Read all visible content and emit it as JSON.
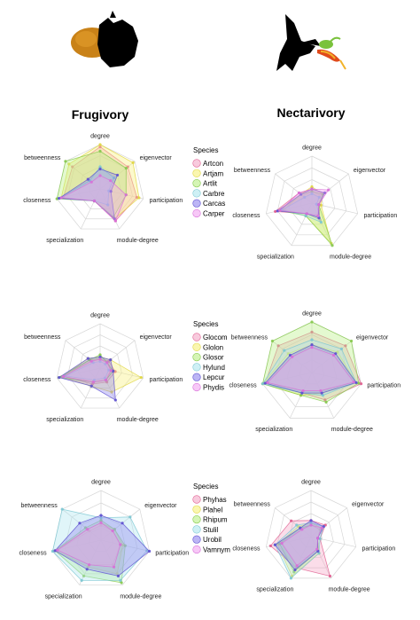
{
  "columns": [
    "Frugivory",
    "Nectarivory"
  ],
  "icons": [
    "fruit-bat-with-fruit-icon",
    "bat-with-flower-icon"
  ],
  "axes": [
    "degree",
    "eigenvector",
    "participation",
    "module-degree",
    "specialization",
    "closeness",
    "betweenness"
  ],
  "colors": [
    "#f4a6c6",
    "#f6f07a",
    "#b9ef83",
    "#aee6ee",
    "#8f83ee",
    "#f2a3f2"
  ],
  "outline_colors": [
    "#e05c8f",
    "#e0d640",
    "#86c94e",
    "#7cc7d2",
    "#5e50d0",
    "#d86fd8"
  ],
  "chart_data": [
    {
      "type": "radar",
      "panel": "frugivory-1",
      "title": "Frugivory",
      "legend_title": "Species",
      "legend_placement": "right",
      "axes": [
        "degree",
        "eigenvector",
        "participation",
        "module-degree",
        "specialization",
        "closeness",
        "betweenness"
      ],
      "series": [
        {
          "name": "Artcon",
          "values": [
            0.95,
            0.8,
            0.85,
            0.8,
            0.3,
            0.85,
            0.8
          ]
        },
        {
          "name": "Artjam",
          "values": [
            1.0,
            0.95,
            0.9,
            0.75,
            0.3,
            0.9,
            0.9
          ]
        },
        {
          "name": "Artlit",
          "values": [
            0.85,
            0.75,
            0.6,
            0.7,
            0.3,
            1.0,
            1.0
          ]
        },
        {
          "name": "Carbre",
          "values": [
            0.5,
            0.4,
            0.2,
            0.4,
            0.3,
            0.95,
            0.3
          ]
        },
        {
          "name": "Carcas",
          "values": [
            0.45,
            0.5,
            0.25,
            0.75,
            0.3,
            0.95,
            0.35
          ]
        },
        {
          "name": "Carper",
          "values": [
            0.3,
            0.3,
            0.6,
            0.8,
            0.3,
            0.9,
            0.25
          ]
        }
      ]
    },
    {
      "type": "radar",
      "panel": "nectarivory-1",
      "title": "Nectarivory",
      "legend_title": "",
      "axes": [
        "degree",
        "eigenvector",
        "participation",
        "module-degree",
        "specialization",
        "closeness",
        "betweenness"
      ],
      "series": [
        {
          "name": "",
          "values": [
            0.3,
            0.35,
            0.15,
            0.4,
            0.25,
            0.8,
            0.35
          ]
        },
        {
          "name": "",
          "values": [
            0.35,
            0.3,
            0.2,
            0.95,
            0.3,
            0.6,
            0.3
          ]
        },
        {
          "name": "",
          "values": [
            0.25,
            0.3,
            0.15,
            1.0,
            0.3,
            0.7,
            0.3
          ]
        },
        {
          "name": "",
          "values": [
            0.2,
            0.2,
            0.1,
            0.45,
            0.3,
            0.65,
            0.2
          ]
        },
        {
          "name": "",
          "values": [
            0.3,
            0.35,
            0.15,
            0.35,
            0.25,
            0.75,
            0.3
          ]
        },
        {
          "name": "",
          "values": [
            0.3,
            0.45,
            0.15,
            0.3,
            0.25,
            0.7,
            0.35
          ]
        }
      ]
    },
    {
      "type": "radar",
      "panel": "frugivory-2",
      "title": "",
      "legend_title": "Species",
      "legend_placement": "right",
      "axes": [
        "degree",
        "eigenvector",
        "participation",
        "module-degree",
        "specialization",
        "closeness",
        "betweenness"
      ],
      "series": [
        {
          "name": "Glocom",
          "values": [
            0.2,
            0.25,
            0.35,
            0.35,
            0.4,
            0.85,
            0.3
          ]
        },
        {
          "name": "Glolon",
          "values": [
            0.25,
            0.3,
            0.95,
            0.6,
            0.45,
            0.9,
            0.35
          ]
        },
        {
          "name": "Glosor",
          "values": [
            0.3,
            0.2,
            0.3,
            0.3,
            0.35,
            0.95,
            0.3
          ]
        },
        {
          "name": "Hylund",
          "values": [
            0.15,
            0.15,
            0.2,
            0.25,
            0.3,
            0.8,
            0.2
          ]
        },
        {
          "name": "Lepcur",
          "values": [
            0.25,
            0.3,
            0.3,
            0.8,
            0.45,
            0.95,
            0.35
          ]
        },
        {
          "name": "Phydis",
          "values": [
            0.2,
            0.2,
            0.25,
            0.3,
            0.35,
            0.85,
            0.25
          ]
        }
      ]
    },
    {
      "type": "radar",
      "panel": "nectarivory-2",
      "title": "",
      "legend_title": "",
      "axes": [
        "degree",
        "eigenvector",
        "participation",
        "module-degree",
        "specialization",
        "closeness",
        "betweenness"
      ],
      "series": [
        {
          "name": "",
          "values": [
            0.8,
            0.85,
            1.0,
            0.6,
            0.45,
            0.95,
            0.85
          ]
        },
        {
          "name": "",
          "values": [
            0.55,
            0.65,
            0.9,
            0.45,
            0.5,
            1.0,
            0.6
          ]
        },
        {
          "name": "",
          "values": [
            1.0,
            1.0,
            0.95,
            0.65,
            0.5,
            1.0,
            1.0
          ]
        },
        {
          "name": "",
          "values": [
            0.65,
            0.75,
            0.9,
            0.5,
            0.45,
            1.0,
            0.7
          ]
        },
        {
          "name": "",
          "values": [
            0.55,
            0.6,
            0.9,
            0.45,
            0.45,
            0.95,
            0.55
          ]
        },
        {
          "name": "",
          "values": [
            0.5,
            0.55,
            0.85,
            0.4,
            0.4,
            0.9,
            0.5
          ]
        }
      ]
    },
    {
      "type": "radar",
      "panel": "frugivory-3",
      "title": "",
      "legend_title": "Species",
      "legend_placement": "right",
      "axes": [
        "degree",
        "eigenvector",
        "participation",
        "module-degree",
        "specialization",
        "closeness",
        "betweenness"
      ],
      "series": [
        {
          "name": "Phyhas",
          "values": [
            0.3,
            0.3,
            0.4,
            0.55,
            0.55,
            0.9,
            0.3
          ]
        },
        {
          "name": "Plahel",
          "values": [
            0.35,
            0.35,
            0.45,
            0.75,
            0.6,
            0.95,
            0.35
          ]
        },
        {
          "name": "Rhipum",
          "values": [
            0.4,
            0.35,
            0.5,
            0.95,
            0.8,
            0.95,
            0.4
          ]
        },
        {
          "name": "Stulil",
          "values": [
            0.45,
            0.75,
            0.95,
            0.9,
            0.9,
            1.0,
            1.0
          ]
        },
        {
          "name": "Urobil",
          "values": [
            0.5,
            0.55,
            1.0,
            0.8,
            0.65,
            0.95,
            0.55
          ]
        },
        {
          "name": "Vamnym",
          "values": [
            0.35,
            0.3,
            0.4,
            0.6,
            0.55,
            0.9,
            0.35
          ]
        }
      ]
    },
    {
      "type": "radar",
      "panel": "nectarivory-3",
      "title": "",
      "legend_title": "",
      "axes": [
        "degree",
        "eigenvector",
        "participation",
        "module-degree",
        "specialization",
        "closeness",
        "betweenness"
      ],
      "series": [
        {
          "name": "",
          "values": [
            0.35,
            0.4,
            0.2,
            0.95,
            0.75,
            0.9,
            0.55
          ]
        },
        {
          "name": "",
          "values": [
            0.3,
            0.3,
            0.15,
            0.4,
            0.95,
            0.75,
            0.35
          ]
        },
        {
          "name": "",
          "values": [
            0.25,
            0.25,
            0.15,
            0.35,
            0.85,
            0.7,
            0.3
          ]
        },
        {
          "name": "",
          "values": [
            0.3,
            0.35,
            0.2,
            0.4,
            1.0,
            0.8,
            0.4
          ]
        },
        {
          "name": "",
          "values": [
            0.35,
            0.35,
            0.15,
            0.35,
            0.8,
            0.8,
            0.3
          ]
        },
        {
          "name": "",
          "values": [
            0.25,
            0.3,
            0.15,
            0.3,
            0.7,
            0.65,
            0.25
          ]
        }
      ]
    }
  ]
}
